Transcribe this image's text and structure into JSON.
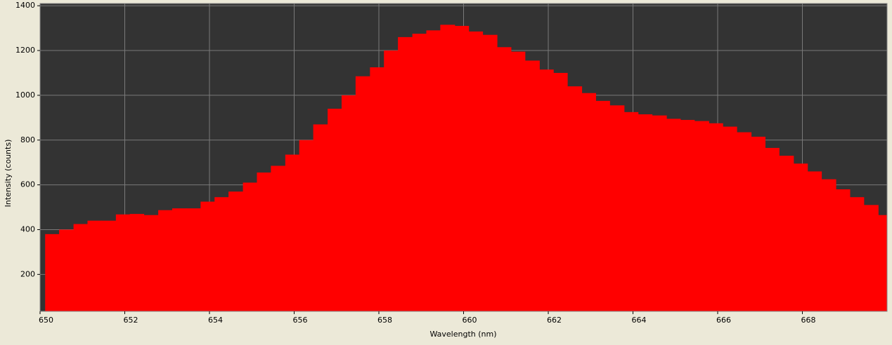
{
  "chart_data": {
    "type": "histogram",
    "x_label": "Wavelength (nm)",
    "y_label": "Intensity (counts)",
    "color": "#ff0000",
    "background": "#333333",
    "grid": true,
    "bins": [
      650.12,
      650.45,
      650.79,
      651.12,
      651.45,
      651.79,
      652.12,
      652.45,
      652.79,
      653.12,
      653.45,
      653.79,
      654.12,
      654.45,
      654.79,
      655.12,
      655.45,
      655.79,
      656.12,
      656.45,
      656.79,
      657.12,
      657.45,
      657.79,
      658.12,
      658.45,
      658.79,
      659.12,
      659.45,
      659.79,
      660.12,
      660.45,
      660.79,
      661.12,
      661.45,
      661.79,
      662.12,
      662.45,
      662.79,
      663.12,
      663.45,
      663.79,
      664.12,
      664.45,
      664.79,
      665.12,
      665.45,
      665.79,
      666.12,
      666.45,
      666.79,
      667.12,
      667.45,
      667.79,
      668.12,
      668.45,
      668.79,
      669.12,
      669.45,
      669.79,
      670.12
    ],
    "values": [
      380,
      400,
      425,
      440,
      440,
      468,
      470,
      465,
      487,
      495,
      495,
      525,
      545,
      570,
      610,
      655,
      685,
      735,
      800,
      870,
      940,
      1000,
      1085,
      1125,
      1200,
      1260,
      1275,
      1290,
      1315,
      1310,
      1285,
      1270,
      1215,
      1195,
      1155,
      1115,
      1100,
      1040,
      1010,
      975,
      955,
      925,
      915,
      910,
      895,
      890,
      885,
      875,
      860,
      835,
      815,
      765,
      730,
      695,
      660,
      625,
      580,
      545,
      510,
      465
    ],
    "xlim": [
      650,
      670
    ],
    "xticks": [
      650,
      652,
      654,
      656,
      658,
      660,
      662,
      664,
      666,
      668
    ],
    "ylim": [
      35,
      1410
    ],
    "yticks": [
      200,
      400,
      600,
      800,
      1000,
      1200,
      1400
    ]
  }
}
